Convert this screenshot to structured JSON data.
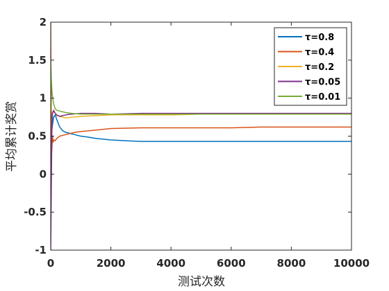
{
  "chart_data": {
    "type": "line",
    "xlabel": "测试次数",
    "ylabel": "平均累计奖赏",
    "xlim": [
      0,
      10000
    ],
    "ylim": [
      -1,
      2
    ],
    "xticks": [
      "0",
      "2000",
      "4000",
      "6000",
      "8000",
      "10000"
    ],
    "yticks": [
      "-1",
      "-0.5",
      "0",
      "0.5",
      "1",
      "1.5",
      "2"
    ],
    "grid": false,
    "legend_position": "top-right",
    "series": [
      {
        "name": "τ=0.8",
        "color": "#0072BD",
        "x": [
          1,
          30,
          60,
          100,
          150,
          200,
          300,
          400,
          500,
          600,
          800,
          1000,
          1200,
          1500,
          2000,
          2500,
          3000,
          4000,
          5000,
          6000,
          7000,
          8000,
          9000,
          10000
        ],
        "y": [
          1.6,
          0.55,
          0.65,
          0.75,
          0.78,
          0.72,
          0.62,
          0.57,
          0.55,
          0.54,
          0.52,
          0.5,
          0.49,
          0.47,
          0.45,
          0.44,
          0.43,
          0.43,
          0.43,
          0.43,
          0.43,
          0.43,
          0.43,
          0.43
        ]
      },
      {
        "name": "τ=0.4",
        "color": "#D95319",
        "x": [
          1,
          20,
          40,
          60,
          80,
          100,
          150,
          200,
          300,
          500,
          800,
          1000,
          1500,
          2000,
          3000,
          4000,
          5000,
          6000,
          7000,
          8000,
          9000,
          10000
        ],
        "y": [
          2.0,
          0.2,
          0.35,
          0.5,
          0.42,
          0.45,
          0.44,
          0.47,
          0.5,
          0.52,
          0.55,
          0.56,
          0.58,
          0.6,
          0.61,
          0.61,
          0.61,
          0.61,
          0.62,
          0.62,
          0.62,
          0.62
        ]
      },
      {
        "name": "τ=0.2",
        "color": "#EDB120",
        "x": [
          1,
          20,
          50,
          100,
          150,
          200,
          300,
          400,
          500,
          700,
          1000,
          1500,
          2000,
          3000,
          4000,
          5000,
          6000,
          7000,
          8000,
          9000,
          10000
        ],
        "y": [
          1.05,
          0.85,
          0.8,
          0.82,
          0.8,
          0.77,
          0.76,
          0.75,
          0.74,
          0.75,
          0.76,
          0.77,
          0.78,
          0.78,
          0.78,
          0.79,
          0.79,
          0.79,
          0.79,
          0.79,
          0.79
        ]
      },
      {
        "name": "τ=0.05",
        "color": "#7E2F8E",
        "x": [
          1,
          20,
          40,
          60,
          100,
          150,
          200,
          300,
          400,
          500,
          700,
          1000,
          1500,
          2000,
          3000,
          4000,
          5000,
          6000,
          7000,
          8000,
          9000,
          10000
        ],
        "y": [
          -1.0,
          -0.2,
          0.6,
          0.8,
          0.84,
          0.8,
          0.78,
          0.76,
          0.77,
          0.78,
          0.79,
          0.8,
          0.8,
          0.79,
          0.8,
          0.8,
          0.8,
          0.8,
          0.8,
          0.8,
          0.8,
          0.8
        ]
      },
      {
        "name": "τ=0.01",
        "color": "#77AC30",
        "x": [
          1,
          20,
          50,
          100,
          150,
          200,
          300,
          400,
          500,
          700,
          1000,
          1500,
          2000,
          3000,
          4000,
          5000,
          6000,
          7000,
          8000,
          9000,
          10000
        ],
        "y": [
          1.5,
          1.25,
          1.05,
          0.92,
          0.86,
          0.84,
          0.83,
          0.82,
          0.81,
          0.8,
          0.79,
          0.79,
          0.79,
          0.79,
          0.79,
          0.79,
          0.79,
          0.79,
          0.79,
          0.79,
          0.79
        ]
      }
    ]
  }
}
